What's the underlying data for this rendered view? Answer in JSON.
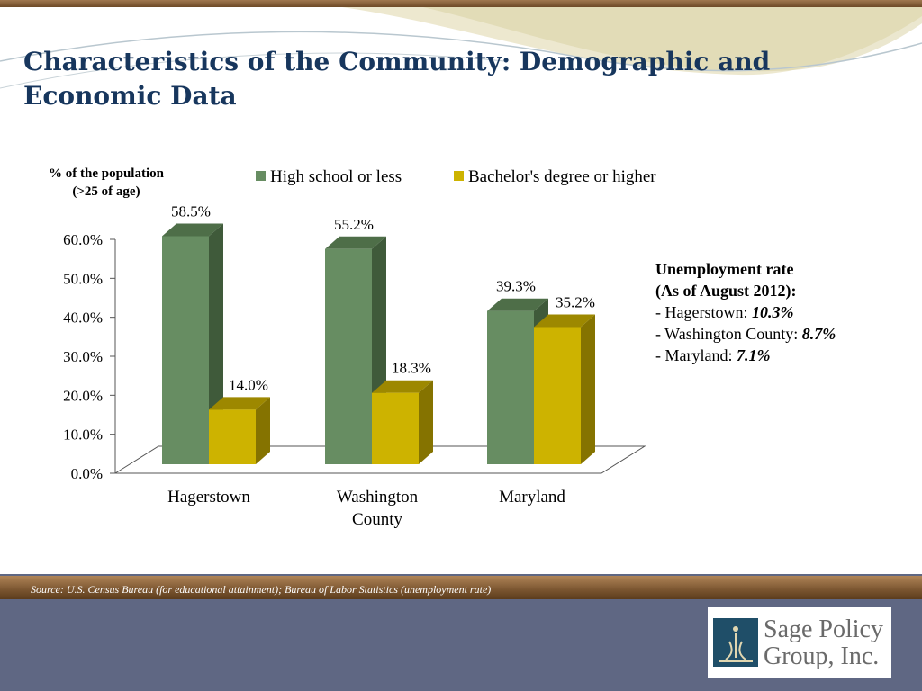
{
  "title": "Characteristics of the Community: Demographic and Economic Data",
  "chart_data": {
    "type": "bar",
    "ylabel": [
      "% of the population",
      "(>25 of age)"
    ],
    "ylim": [
      0,
      60
    ],
    "yticks": [
      0,
      10,
      20,
      30,
      40,
      50,
      60
    ],
    "ytick_labels": [
      "0.0%",
      "10.0%",
      "20.0%",
      "30.0%",
      "40.0%",
      "50.0%",
      "60.0%"
    ],
    "categories": [
      [
        "Hagerstown"
      ],
      [
        "Washington",
        "County"
      ],
      [
        "Maryland"
      ]
    ],
    "series": [
      {
        "name": "High school or less",
        "color": "#678d62",
        "values": [
          58.5,
          55.2,
          39.3
        ],
        "labels": [
          "58.5%",
          "55.2%",
          "39.3%"
        ]
      },
      {
        "name": "Bachelor's degree or higher",
        "color": "#cdb300",
        "values": [
          14.0,
          18.3,
          35.2
        ],
        "labels": [
          "14.0%",
          "18.3%",
          "35.2%"
        ]
      }
    ],
    "legend_position": "top"
  },
  "unemployment": {
    "heading_line1": "Unemployment rate",
    "heading_line2": "(As of August 2012):",
    "items": [
      {
        "label": "-  Hagerstown: ",
        "value": "10.3%"
      },
      {
        "label": "-  Washington County: ",
        "value": "8.7%"
      },
      {
        "label": "-  Maryland: ",
        "value": "7.1%"
      }
    ]
  },
  "source": "Source:  U.S. Census Bureau (for educational attainment); Bureau of Labor Statistics (unemployment rate)",
  "logo": {
    "text": "Sage Policy Group, Inc."
  },
  "colors": {
    "title": "#17365d",
    "band": "#5f6783",
    "hs": "#678d62",
    "ba": "#cdb300"
  }
}
